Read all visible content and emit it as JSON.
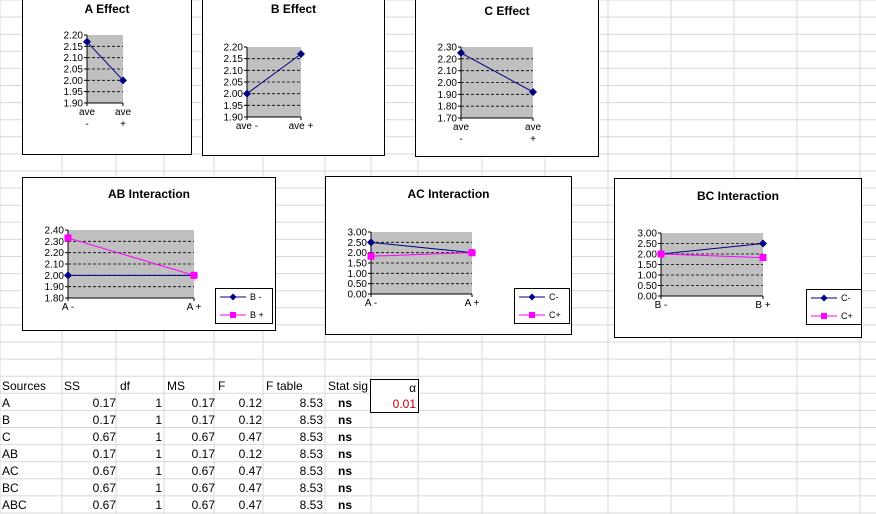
{
  "colors": {
    "series_blue": "#000080",
    "series_pink": "#ff00ff",
    "plot_bg": "#c0c0c0",
    "alpha_value": "#c00000"
  },
  "chart_data": [
    {
      "id": "a-effect",
      "type": "line",
      "title": "A Effect",
      "categories": [
        [
          "ave",
          "-"
        ],
        [
          "ave",
          "+"
        ]
      ],
      "series": [
        {
          "values": [
            2.17,
            2.0
          ],
          "marker": "diamond",
          "color": "#000080"
        }
      ],
      "ylim": [
        1.9,
        2.2
      ],
      "yticks": [
        "2.20",
        "2.15",
        "2.10",
        "2.05",
        "2.00",
        "1.95",
        "1.90"
      ]
    },
    {
      "id": "b-effect",
      "type": "line",
      "title": "B Effect",
      "categories": [
        [
          "ave -"
        ],
        [
          "ave +"
        ]
      ],
      "series": [
        {
          "values": [
            2.0,
            2.17
          ],
          "marker": "diamond",
          "color": "#000080"
        }
      ],
      "ylim": [
        1.9,
        2.2
      ],
      "yticks": [
        "2.20",
        "2.15",
        "2.10",
        "2.05",
        "2.00",
        "1.95",
        "1.90"
      ]
    },
    {
      "id": "c-effect",
      "type": "line",
      "title": "C Effect",
      "categories": [
        [
          "ave",
          "-"
        ],
        [
          "ave",
          "+"
        ]
      ],
      "series": [
        {
          "values": [
            2.25,
            1.92
          ],
          "marker": "diamond",
          "color": "#000080"
        }
      ],
      "ylim": [
        1.7,
        2.3
      ],
      "yticks": [
        "2.30",
        "2.20",
        "2.10",
        "2.00",
        "1.90",
        "1.80",
        "1.70"
      ]
    },
    {
      "id": "ab-interaction",
      "type": "line",
      "title": "AB Interaction",
      "categories": [
        [
          "A -"
        ],
        [
          "A +"
        ]
      ],
      "series": [
        {
          "name": "B -",
          "values": [
            2.0,
            2.0
          ],
          "marker": "diamond",
          "color": "#000080"
        },
        {
          "name": "B +",
          "values": [
            2.33,
            2.0
          ],
          "marker": "square",
          "color": "#ff00ff"
        }
      ],
      "ylim": [
        1.8,
        2.4
      ],
      "yticks": [
        "2.40",
        "2.30",
        "2.20",
        "2.10",
        "2.00",
        "1.90",
        "1.80"
      ]
    },
    {
      "id": "ac-interaction",
      "type": "line",
      "title": "AC Interaction",
      "categories": [
        [
          "A -"
        ],
        [
          "A +"
        ]
      ],
      "series": [
        {
          "name": "C-",
          "values": [
            2.5,
            2.0
          ],
          "marker": "diamond",
          "color": "#000080"
        },
        {
          "name": "C+",
          "values": [
            1.83,
            2.0
          ],
          "marker": "square",
          "color": "#ff00ff"
        }
      ],
      "ylim": [
        0.0,
        3.0
      ],
      "yticks": [
        "3.00",
        "2.50",
        "2.00",
        "1.50",
        "1.00",
        "0.50",
        "0.00"
      ]
    },
    {
      "id": "bc-interaction",
      "type": "line",
      "title": "BC Interaction",
      "categories": [
        [
          "B -"
        ],
        [
          "B +"
        ]
      ],
      "series": [
        {
          "name": "C-",
          "values": [
            2.0,
            2.5
          ],
          "marker": "diamond",
          "color": "#000080"
        },
        {
          "name": "C+",
          "values": [
            2.0,
            1.83
          ],
          "marker": "square",
          "color": "#ff00ff"
        }
      ],
      "ylim": [
        0.0,
        3.0
      ],
      "yticks": [
        "3.00",
        "2.50",
        "2.00",
        "1.50",
        "1.00",
        "0.50",
        "0.00"
      ]
    }
  ],
  "anova": {
    "headers": [
      "Sources",
      "SS",
      "df",
      "MS",
      "F",
      "F table",
      "Stat sig"
    ],
    "rows": [
      [
        "A",
        "0.17",
        "1",
        "0.17",
        "0.12",
        "8.53",
        "ns"
      ],
      [
        "B",
        "0.17",
        "1",
        "0.17",
        "0.12",
        "8.53",
        "ns"
      ],
      [
        "C",
        "0.67",
        "1",
        "0.67",
        "0.47",
        "8.53",
        "ns"
      ],
      [
        "AB",
        "0.17",
        "1",
        "0.17",
        "0.12",
        "8.53",
        "ns"
      ],
      [
        "AC",
        "0.67",
        "1",
        "0.67",
        "0.47",
        "8.53",
        "ns"
      ],
      [
        "BC",
        "0.67",
        "1",
        "0.67",
        "0.47",
        "8.53",
        "ns"
      ],
      [
        "ABC",
        "0.67",
        "1",
        "0.67",
        "0.47",
        "8.53",
        "ns"
      ]
    ]
  },
  "alpha": {
    "label": "α",
    "value": "0.01"
  }
}
